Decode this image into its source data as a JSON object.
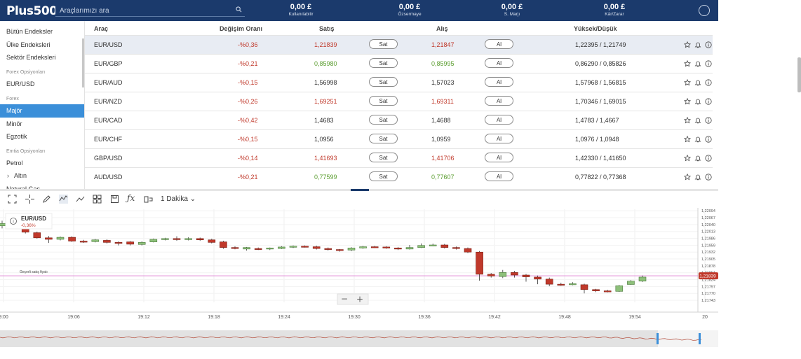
{
  "header": {
    "logo": "Plus500",
    "search_placeholder": "Araçlarımızı ara",
    "stats": [
      {
        "value": "0,00 £",
        "label": "Kullanılabilir"
      },
      {
        "value": "0,00 £",
        "label": "Özsermaye"
      },
      {
        "value": "0,00 £",
        "label": "S. Marjı"
      },
      {
        "value": "0,00 £",
        "label": "Kâr/Zarar"
      }
    ]
  },
  "sidebar": {
    "items": [
      {
        "label": "Bütün Endeksler",
        "type": "item"
      },
      {
        "label": "Ülke Endeksleri",
        "type": "item"
      },
      {
        "label": "Sektör Endeksleri",
        "type": "item"
      },
      {
        "label": "Forex Opsiyonları",
        "type": "head"
      },
      {
        "label": "EUR/USD",
        "type": "item"
      },
      {
        "label": "Forex",
        "type": "head"
      },
      {
        "label": "Majör",
        "type": "item",
        "active": true
      },
      {
        "label": "Minör",
        "type": "item"
      },
      {
        "label": "Egzotik",
        "type": "item"
      },
      {
        "label": "Emtia Opsiyonları",
        "type": "head"
      },
      {
        "label": "Petrol",
        "type": "item"
      },
      {
        "label": "Altın",
        "type": "item",
        "chevron": true
      },
      {
        "label": "Natural Gas",
        "type": "item"
      }
    ]
  },
  "table": {
    "headers": {
      "instrument": "Araç",
      "change": "Değişim Oranı",
      "sell": "Satış",
      "buy": "Alış",
      "highlow": "Yüksek/Düşük"
    },
    "sell_btn": "Sat",
    "buy_btn": "Al",
    "rows": [
      {
        "name": "EUR/USD",
        "change": "-%0,36",
        "sell": "1,21839",
        "buy": "1,21847",
        "highlow": "1,22395 / 1,21749",
        "sell_color": "red",
        "buy_color": "red"
      },
      {
        "name": "EUR/GBP",
        "change": "-%0,21",
        "sell": "0,85980",
        "buy": "0,85995",
        "highlow": "0,86290 / 0,85826",
        "sell_color": "green",
        "buy_color": "green"
      },
      {
        "name": "EUR/AUD",
        "change": "-%0,15",
        "sell": "1,56998",
        "buy": "1,57023",
        "highlow": "1,57968 / 1,56815",
        "sell_color": "dark",
        "buy_color": "dark"
      },
      {
        "name": "EUR/NZD",
        "change": "-%0,26",
        "sell": "1,69251",
        "buy": "1,69311",
        "highlow": "1,70346 / 1,69015",
        "sell_color": "red",
        "buy_color": "red"
      },
      {
        "name": "EUR/CAD",
        "change": "-%0,42",
        "sell": "1,4683",
        "buy": "1,4688",
        "highlow": "1,4783 / 1,4667",
        "sell_color": "dark",
        "buy_color": "dark"
      },
      {
        "name": "EUR/CHF",
        "change": "-%0,15",
        "sell": "1,0956",
        "buy": "1,0959",
        "highlow": "1,0976 / 1,0948",
        "sell_color": "dark",
        "buy_color": "dark"
      },
      {
        "name": "GBP/USD",
        "change": "-%0,14",
        "sell": "1,41693",
        "buy": "1,41706",
        "highlow": "1,42330 / 1,41650",
        "sell_color": "red",
        "buy_color": "red"
      },
      {
        "name": "AUD/USD",
        "change": "-%0,21",
        "sell": "0,77599",
        "buy": "0,77607",
        "highlow": "0,77822 / 0,77368",
        "sell_color": "green",
        "buy_color": "green"
      }
    ]
  },
  "toolbar": {
    "interval": "1 Dakika"
  },
  "chart": {
    "instrument": "EUR/USD",
    "change": "-0,36%",
    "current_label": "Geçerli satış fiyatı",
    "current_price": "1,21839",
    "zoom_out": "−",
    "zoom_in": "+",
    "colors": {
      "up": "#8dc07a",
      "down": "#c0392b",
      "line": "#e08ad8"
    }
  },
  "chart_data": {
    "type": "candlestick",
    "y_ticks": [
      "1,22094",
      "1,22067",
      "1,22040",
      "1,22013",
      "1,21986",
      "1,21959",
      "1,21932",
      "1,21905",
      "1,21878",
      "1,21851",
      "1,21824",
      "1,21797",
      "1,21770",
      "1,21743"
    ],
    "x_ticks": [
      "9:00",
      "19:06",
      "19:12",
      "19:18",
      "19:24",
      "19:30",
      "19:36",
      "19:42",
      "19:48",
      "19:54",
      "20"
    ],
    "ylim": [
      1.21735,
      1.221
    ],
    "current": 1.21839,
    "candles": [
      {
        "o": 1.22035,
        "c": 1.22044,
        "h": 1.22055,
        "l": 1.22025
      },
      {
        "o": 1.22048,
        "c": 1.2203,
        "h": 1.22052,
        "l": 1.22025
      },
      {
        "o": 1.22028,
        "c": 1.2201,
        "h": 1.22032,
        "l": 1.22005
      },
      {
        "o": 1.22008,
        "c": 1.21988,
        "h": 1.22012,
        "l": 1.21985
      },
      {
        "o": 1.21988,
        "c": 1.21982,
        "h": 1.21995,
        "l": 1.21968
      },
      {
        "o": 1.21982,
        "c": 1.2199,
        "h": 1.21993,
        "l": 1.21978
      },
      {
        "o": 1.2199,
        "c": 1.21975,
        "h": 1.21994,
        "l": 1.21972
      },
      {
        "o": 1.21975,
        "c": 1.21972,
        "h": 1.2198,
        "l": 1.21968
      },
      {
        "o": 1.21973,
        "c": 1.2198,
        "h": 1.21983,
        "l": 1.2197
      },
      {
        "o": 1.21978,
        "c": 1.2197,
        "h": 1.21982,
        "l": 1.21966
      },
      {
        "o": 1.2197,
        "c": 1.21968,
        "h": 1.21974,
        "l": 1.21958
      },
      {
        "o": 1.21972,
        "c": 1.21963,
        "h": 1.21975,
        "l": 1.21958
      },
      {
        "o": 1.21962,
        "c": 1.2197,
        "h": 1.21974,
        "l": 1.21958
      },
      {
        "o": 1.21972,
        "c": 1.21982,
        "h": 1.21985,
        "l": 1.2197
      },
      {
        "o": 1.21982,
        "c": 1.21985,
        "h": 1.21988,
        "l": 1.21978
      },
      {
        "o": 1.21985,
        "c": 1.21982,
        "h": 1.21994,
        "l": 1.21976
      },
      {
        "o": 1.21982,
        "c": 1.21985,
        "h": 1.2199,
        "l": 1.21978
      },
      {
        "o": 1.21985,
        "c": 1.2198,
        "h": 1.21989,
        "l": 1.21976
      },
      {
        "o": 1.2198,
        "c": 1.2197,
        "h": 1.21984,
        "l": 1.21966
      },
      {
        "o": 1.21972,
        "c": 1.2195,
        "h": 1.21976,
        "l": 1.21945
      },
      {
        "o": 1.2195,
        "c": 1.21946,
        "h": 1.21955,
        "l": 1.21943
      },
      {
        "o": 1.21944,
        "c": 1.2195,
        "h": 1.21952,
        "l": 1.21938
      },
      {
        "o": 1.21946,
        "c": 1.21944,
        "h": 1.2195,
        "l": 1.2194
      },
      {
        "o": 1.21944,
        "c": 1.21948,
        "h": 1.2195,
        "l": 1.2194
      },
      {
        "o": 1.21946,
        "c": 1.21952,
        "h": 1.21955,
        "l": 1.21944
      },
      {
        "o": 1.21952,
        "c": 1.21955,
        "h": 1.21958,
        "l": 1.21948
      },
      {
        "o": 1.21955,
        "c": 1.21953,
        "h": 1.21958,
        "l": 1.2195
      },
      {
        "o": 1.21953,
        "c": 1.21946,
        "h": 1.21957,
        "l": 1.21942
      },
      {
        "o": 1.21946,
        "c": 1.21942,
        "h": 1.2195,
        "l": 1.21938
      },
      {
        "o": 1.21942,
        "c": 1.21938,
        "h": 1.21944,
        "l": 1.21934
      },
      {
        "o": 1.2194,
        "c": 1.21948,
        "h": 1.21951,
        "l": 1.21936
      },
      {
        "o": 1.21948,
        "c": 1.21953,
        "h": 1.21956,
        "l": 1.21945
      },
      {
        "o": 1.21953,
        "c": 1.21952,
        "h": 1.21956,
        "l": 1.21948
      },
      {
        "o": 1.21952,
        "c": 1.21948,
        "h": 1.21955,
        "l": 1.21945
      },
      {
        "o": 1.21948,
        "c": 1.21944,
        "h": 1.21952,
        "l": 1.2194
      },
      {
        "o": 1.21944,
        "c": 1.2195,
        "h": 1.2196,
        "l": 1.21942
      },
      {
        "o": 1.2195,
        "c": 1.21958,
        "h": 1.21966,
        "l": 1.21948
      },
      {
        "o": 1.21958,
        "c": 1.2196,
        "h": 1.21965,
        "l": 1.21955
      },
      {
        "o": 1.2196,
        "c": 1.2195,
        "h": 1.21964,
        "l": 1.21946
      },
      {
        "o": 1.2195,
        "c": 1.21946,
        "h": 1.21954,
        "l": 1.21942
      },
      {
        "o": 1.21946,
        "c": 1.21932,
        "h": 1.2195,
        "l": 1.21928
      },
      {
        "o": 1.21932,
        "c": 1.21845,
        "h": 1.21936,
        "l": 1.2182
      },
      {
        "o": 1.21845,
        "c": 1.21838,
        "h": 1.2185,
        "l": 1.21832
      },
      {
        "o": 1.21836,
        "c": 1.21852,
        "h": 1.21862,
        "l": 1.2183
      },
      {
        "o": 1.21852,
        "c": 1.21842,
        "h": 1.21858,
        "l": 1.21832
      },
      {
        "o": 1.21842,
        "c": 1.21835,
        "h": 1.21846,
        "l": 1.21816
      },
      {
        "o": 1.21834,
        "c": 1.21826,
        "h": 1.2184,
        "l": 1.21806
      },
      {
        "o": 1.21826,
        "c": 1.21806,
        "h": 1.21832,
        "l": 1.21798
      },
      {
        "o": 1.21806,
        "c": 1.21804,
        "h": 1.21812,
        "l": 1.218
      },
      {
        "o": 1.21806,
        "c": 1.21808,
        "h": 1.21814,
        "l": 1.21802
      },
      {
        "o": 1.21804,
        "c": 1.21785,
        "h": 1.21808,
        "l": 1.2177
      },
      {
        "o": 1.21785,
        "c": 1.2178,
        "h": 1.21788,
        "l": 1.21775
      },
      {
        "o": 1.2178,
        "c": 1.21778,
        "h": 1.21784,
        "l": 1.21774
      },
      {
        "o": 1.21778,
        "c": 1.218,
        "h": 1.21803,
        "l": 1.21776
      },
      {
        "o": 1.21805,
        "c": 1.21818,
        "h": 1.21822,
        "l": 1.21804
      },
      {
        "o": 1.21818,
        "c": 1.21834,
        "h": 1.2184,
        "l": 1.21815
      }
    ]
  }
}
